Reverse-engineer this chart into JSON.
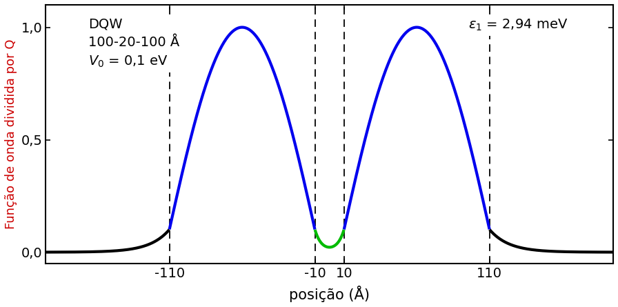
{
  "title": "",
  "xlabel": "posição (Å)",
  "ylabel": "Função de onda dividida por Q",
  "xlim": [
    -195,
    195
  ],
  "ylim": [
    -0.05,
    1.1
  ],
  "yticks": [
    0.0,
    0.5,
    1.0
  ],
  "ytick_labels": [
    "0,0",
    "0,5",
    "1,0"
  ],
  "xticks": [
    -110,
    -10,
    10,
    110
  ],
  "xtick_labels": [
    "-110",
    "-10",
    "10",
    "110"
  ],
  "vlines": [
    -110,
    -10,
    10,
    110
  ],
  "annotation_text": "DQW\n100-20-100 Å\n$V_0$ = 0,1 eV",
  "epsilon_text": "$\\epsilon_1$ = 2,94 meV",
  "color_outside": "#000000",
  "color_wells": "#0000EE",
  "color_barrier": "#00BB00",
  "line_width": 3.0,
  "background_color": "#FFFFFF",
  "dashed_line_color": "#000000",
  "axis_label_color": "#CC0000",
  "fig_width": 8.96,
  "fig_height": 4.45,
  "kappa_out": 0.075,
  "kappa_barrier": 0.22,
  "k_well": 0.02856,
  "annotation_fontsize": 14,
  "epsilon_fontsize": 14,
  "tick_fontsize": 14,
  "xlabel_fontsize": 15,
  "ylabel_fontsize": 13
}
